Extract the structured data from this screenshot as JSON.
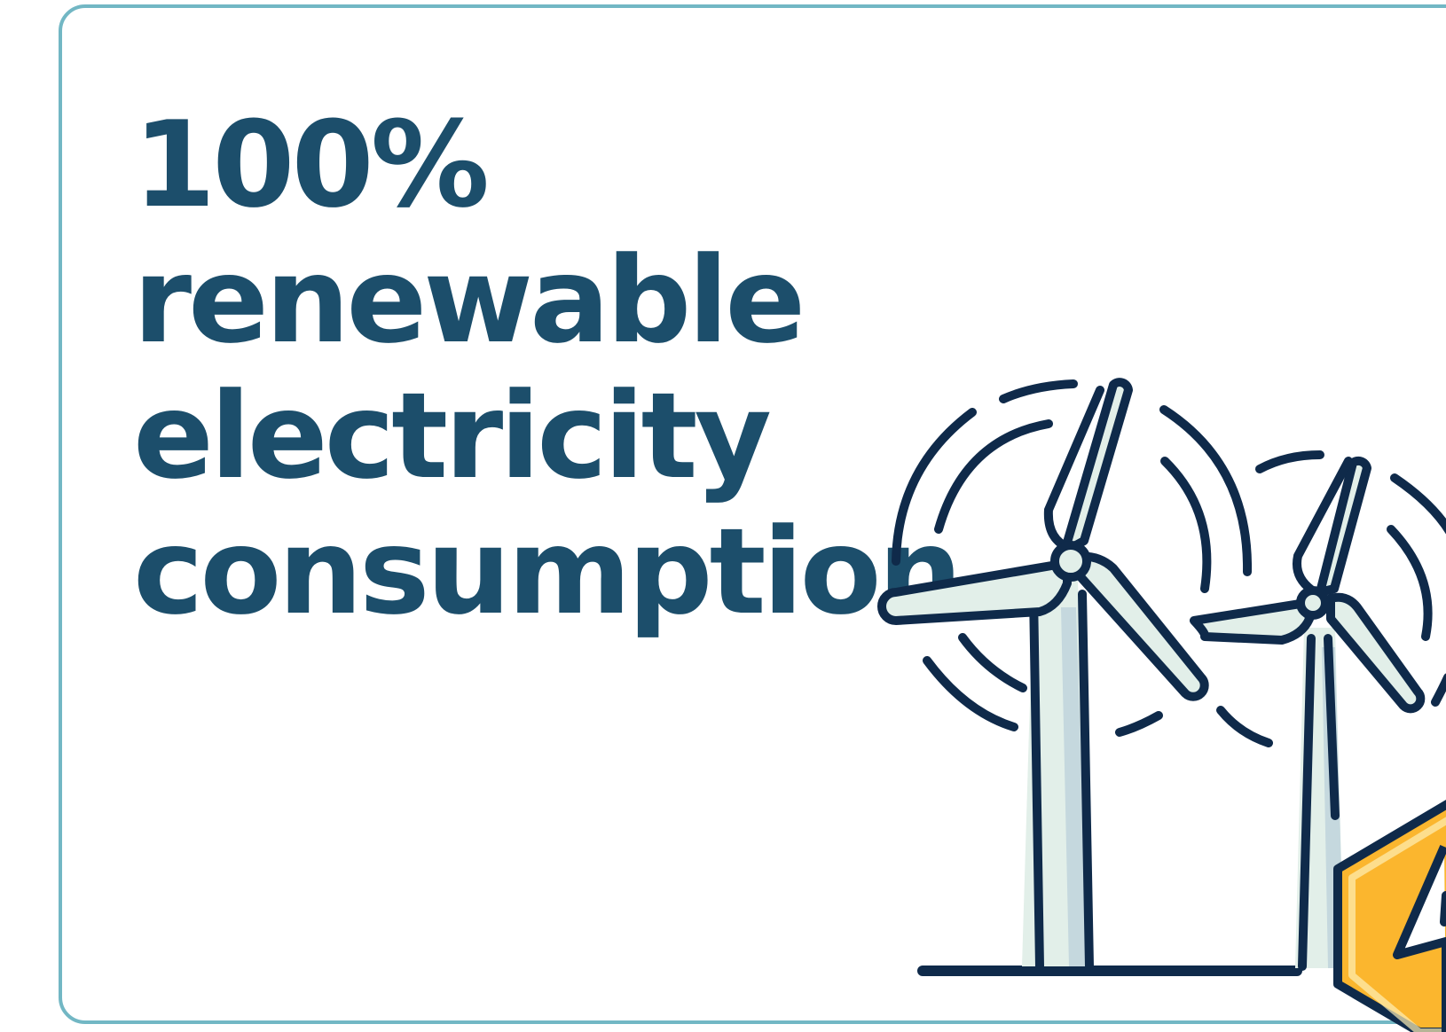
{
  "headline": {
    "line1": "100%",
    "line2": "renewable",
    "line3": "electricity",
    "line4": "consumption"
  },
  "illustration": {
    "icons": [
      "wind-turbine-icon",
      "wind-turbine-icon",
      "lightning-bolt-icon"
    ]
  },
  "colors": {
    "border": "#72b7c4",
    "heading": "#1c4e6b",
    "outline": "#0f2a4a",
    "blade_fill": "#e2efe9",
    "tower_shade": "#c5d8de",
    "energy_fill": "#fbb62e",
    "energy_highlight": "#fdf0b6",
    "background": "#ffffff"
  }
}
